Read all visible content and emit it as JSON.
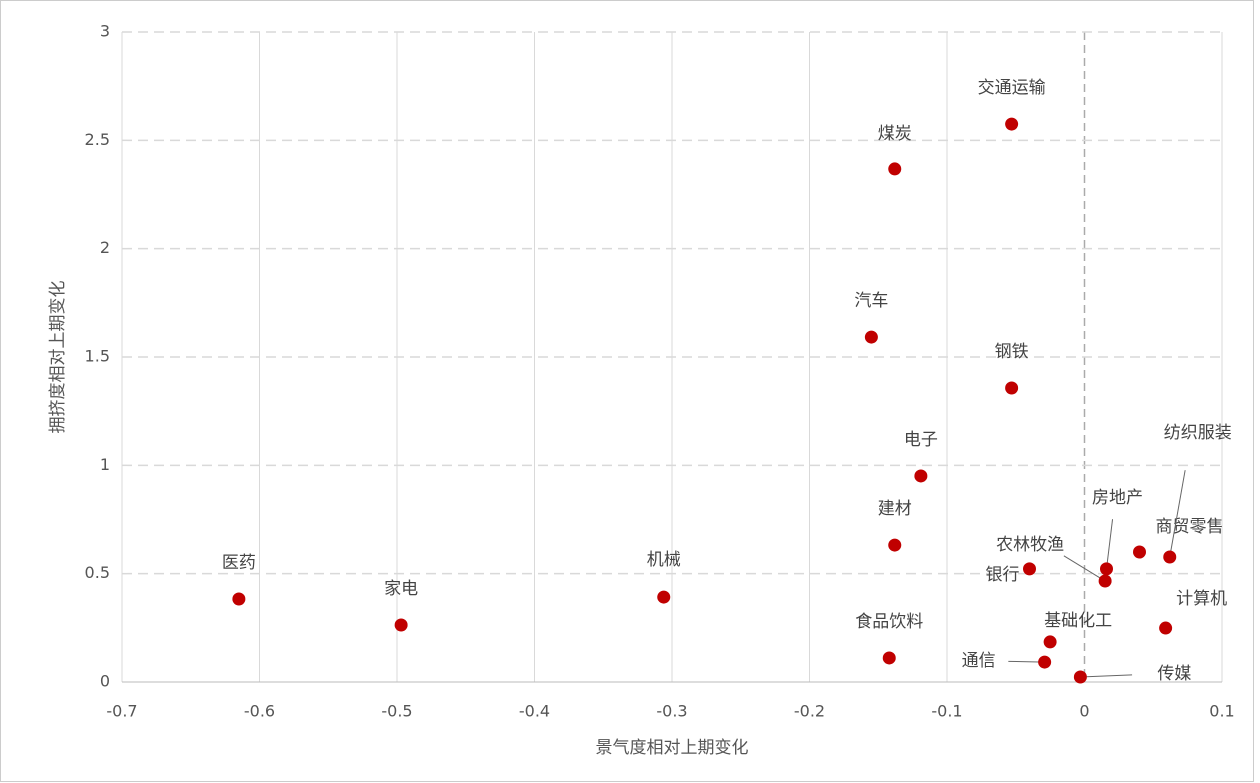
{
  "chart_data": {
    "type": "scatter",
    "x_label": "景气度相对上期变化",
    "y_label": "拥挤度相对上期变化",
    "labels": [
      "医药",
      "家电",
      "机械",
      "食品饮料",
      "建材",
      "电子",
      "汽车",
      "煤炭",
      "交通运输",
      "钢铁",
      "银行",
      "基础化工",
      "通信",
      "传媒",
      "农林牧渔",
      "房地产",
      "商贸零售",
      "纺织服装",
      "计算机"
    ],
    "x": [
      -0.615,
      -0.497,
      -0.306,
      -0.142,
      -0.138,
      -0.119,
      -0.155,
      -0.138,
      -0.053,
      -0.053,
      -0.04,
      -0.025,
      -0.029,
      -0.003,
      0.015,
      0.016,
      0.04,
      0.062,
      0.059
    ],
    "values": [
      0.383,
      0.263,
      0.392,
      0.111,
      0.632,
      0.951,
      1.592,
      2.368,
      2.575,
      1.357,
      0.522,
      0.185,
      0.092,
      0.023,
      0.466,
      0.522,
      0.6,
      0.577,
      0.249
    ],
    "color": "#c00000",
    "xlim": [
      -0.7,
      0.1
    ],
    "ylim": [
      0,
      3
    ],
    "xticks": [
      -0.7,
      -0.6,
      -0.5,
      -0.4,
      -0.3,
      -0.2,
      -0.1,
      0,
      0.1
    ],
    "yticks": [
      0,
      0.5,
      1,
      1.5,
      2,
      2.5,
      3
    ],
    "grid": true
  }
}
